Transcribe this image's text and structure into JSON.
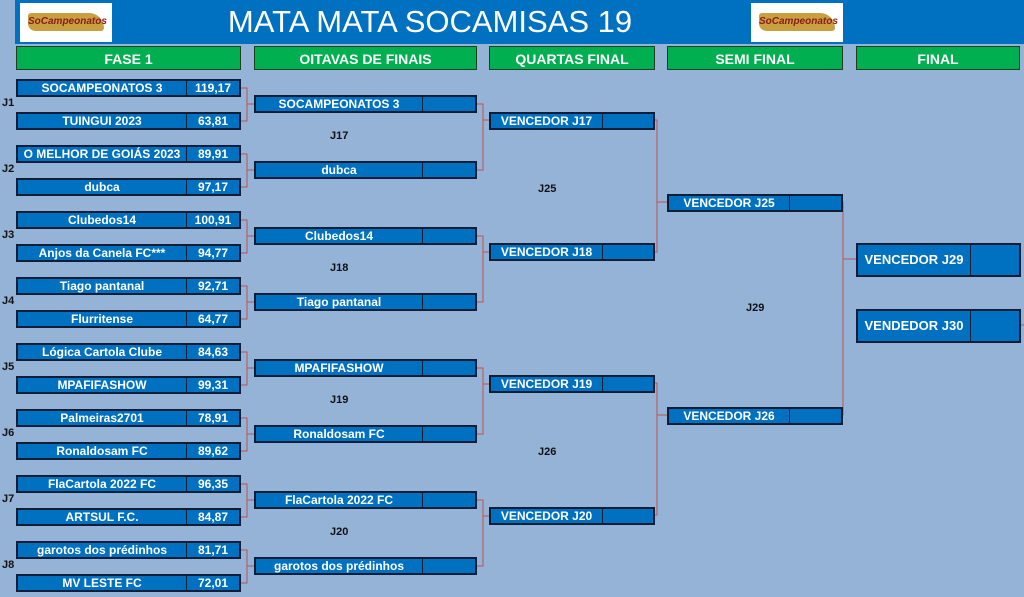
{
  "title": "MATA MATA SOCAMISAS 19",
  "logo_text": "SoCampeonatos",
  "phases": [
    "FASE 1",
    "OITAVAS DE FINAIS",
    "QUARTAS FINAL",
    "SEMI FINAL",
    "FINAL"
  ],
  "colors": {
    "header": "#0070c0",
    "phase": "#00b050",
    "box": "#0070c0",
    "background": "#95b3d7",
    "connector": "#c0504d"
  },
  "fase1": [
    {
      "label": "J1",
      "teams": [
        {
          "name": "SOCAMPEONATOS 3",
          "score": "119,17"
        },
        {
          "name": "TUINGUI 2023",
          "score": "63,81"
        }
      ]
    },
    {
      "label": "J2",
      "teams": [
        {
          "name": "O MELHOR DE GOIÁS 2023",
          "score": "89,91"
        },
        {
          "name": "dubca",
          "score": "97,17"
        }
      ]
    },
    {
      "label": "J3",
      "teams": [
        {
          "name": "Clubedos14",
          "score": "100,91"
        },
        {
          "name": "Anjos da Canela FC***",
          "score": "94,77"
        }
      ]
    },
    {
      "label": "J4",
      "teams": [
        {
          "name": "Tiago pantanal",
          "score": "92,71"
        },
        {
          "name": "Flurritense",
          "score": "64,77"
        }
      ]
    },
    {
      "label": "J5",
      "teams": [
        {
          "name": "Lógica Cartola Clube",
          "score": "84,63"
        },
        {
          "name": "MPAFIFASHOW",
          "score": "99,31"
        }
      ]
    },
    {
      "label": "J6",
      "teams": [
        {
          "name": "Palmeiras2701",
          "score": "78,91"
        },
        {
          "name": "Ronaldosam FC",
          "score": "89,62"
        }
      ]
    },
    {
      "label": "J7",
      "teams": [
        {
          "name": "FlaCartola 2022 FC",
          "score": "96,35"
        },
        {
          "name": "ARTSUL F.C.",
          "score": "84,87"
        }
      ]
    },
    {
      "label": "J8",
      "teams": [
        {
          "name": "garotos dos prédinhos",
          "score": "81,71"
        },
        {
          "name": "MV LESTE FC",
          "score": "72,01"
        }
      ]
    }
  ],
  "oitavas": {
    "teams": [
      "SOCAMPEONATOS 3",
      "dubca",
      "Clubedos14",
      "Tiago pantanal",
      "MPAFIFASHOW",
      "Ronaldosam FC",
      "FlaCartola 2022 FC",
      "garotos dos prédinhos"
    ],
    "labels": [
      "J17",
      "J18",
      "J19",
      "J20"
    ]
  },
  "quartas": {
    "teams": [
      "VENCEDOR J17",
      "VENCEDOR J18",
      "VENCEDOR J19",
      "VENCEDOR J20"
    ],
    "labels": [
      "J25",
      "J26"
    ]
  },
  "semi": {
    "teams": [
      "VENCEDOR J25",
      "VENCEDOR J26"
    ],
    "labels": [
      "J29"
    ]
  },
  "final": {
    "teams": [
      "VENCEDOR J29",
      "VENDEDOR J30"
    ]
  }
}
